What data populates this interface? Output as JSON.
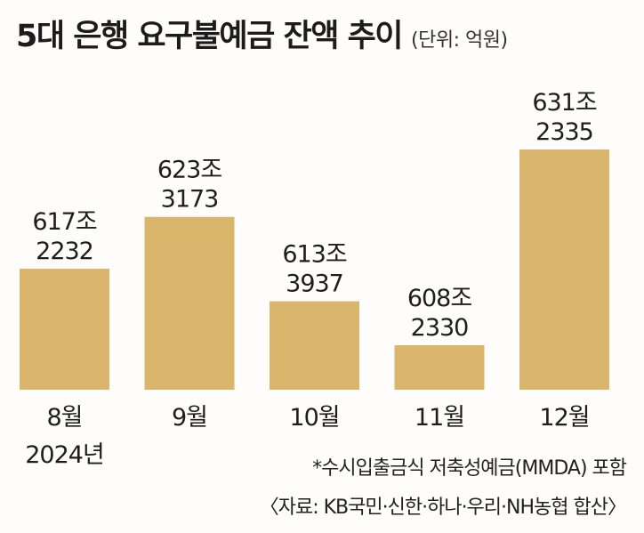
{
  "header": {
    "title": "5대 은행 요구불예금 잔액 추이",
    "unit": "(단위: 억원)"
  },
  "colors": {
    "bar": "#d9b66c",
    "text": "#1e1e1e"
  },
  "chart_data": {
    "type": "bar",
    "categories": [
      "8월",
      "9월",
      "10월",
      "11월",
      "12월"
    ],
    "values": [
      6172232,
      6233173,
      6133937,
      6082330,
      6312335
    ],
    "labels": [
      [
        "617조",
        "2232"
      ],
      [
        "623조",
        "3173"
      ],
      [
        "613조",
        "3937"
      ],
      [
        "608조",
        "2330"
      ],
      [
        "631조",
        "2335"
      ]
    ],
    "category_sublabels": [
      "2024년",
      "",
      "",
      "",
      ""
    ],
    "unit": "억원"
  },
  "footer": {
    "note": "*수시입출금식 저축성예금(MMDA) 포함",
    "source": "〈자료: KB국민·신한·하나·우리·NH농협 합산〉"
  }
}
